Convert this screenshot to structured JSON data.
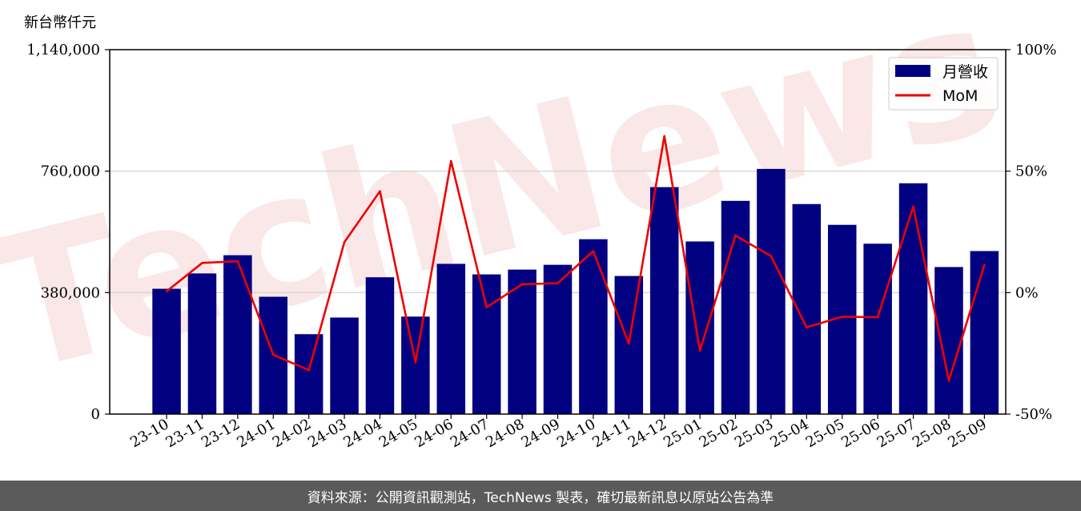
{
  "chart_data": {
    "type": "bar",
    "unit_label": "新台幣仟元",
    "categories": [
      "23-10",
      "23-11",
      "23-12",
      "24-01",
      "24-02",
      "24-03",
      "24-04",
      "24-05",
      "24-06",
      "24-07",
      "24-08",
      "24-09",
      "24-10",
      "24-11",
      "24-12",
      "25-01",
      "25-02",
      "25-03",
      "25-04",
      "25-05",
      "25-06",
      "25-07",
      "25-08",
      "25-09"
    ],
    "series": [
      {
        "name": "月營收",
        "type": "bar",
        "axis": "left",
        "color": "#000080",
        "values": [
          392000,
          440000,
          497000,
          367000,
          250000,
          302000,
          428000,
          305000,
          470000,
          437000,
          452000,
          467000,
          547000,
          432000,
          710000,
          540000,
          667000,
          767000,
          657000,
          592000,
          533000,
          722000,
          460000,
          510000
        ]
      },
      {
        "name": "MoM",
        "type": "line",
        "axis": "right",
        "color": "#ee0000",
        "values": [
          0.5,
          12.2,
          12.9,
          -25.6,
          -31.9,
          20.8,
          41.7,
          -28.7,
          54.1,
          -6.0,
          3.4,
          3.9,
          17.1,
          -21.0,
          64.4,
          -23.9,
          23.5,
          15.0,
          -14.3,
          -9.9,
          -10.1,
          35.4,
          -36.3,
          11.4
        ]
      }
    ],
    "y_left": {
      "ylim": [
        0,
        1140000
      ],
      "ticks": [
        "0",
        "380,000",
        "760,000",
        "1,140,000"
      ]
    },
    "y_right": {
      "ylim": [
        -50,
        100
      ],
      "ticks": [
        "-50%",
        "0%",
        "50%",
        "100%"
      ]
    },
    "grid": true,
    "legend": "top-right",
    "watermark": "TechNews"
  },
  "footer": {
    "text": "資料來源：公開資訊觀測站，TechNews 製表，確切最新訊息以原站公告為準"
  }
}
